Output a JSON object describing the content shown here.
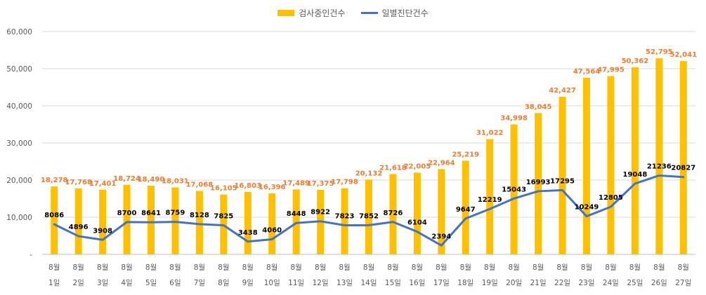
{
  "chart_data": {
    "type": "bar",
    "categories": [
      [
        "8월",
        "1일"
      ],
      [
        "8월",
        "2일"
      ],
      [
        "8월",
        "3일"
      ],
      [
        "8월",
        "4일"
      ],
      [
        "8월",
        "5일"
      ],
      [
        "8월",
        "6일"
      ],
      [
        "8월",
        "7일"
      ],
      [
        "8월",
        "8일"
      ],
      [
        "8월",
        "9일"
      ],
      [
        "8월",
        "10일"
      ],
      [
        "8월",
        "11일"
      ],
      [
        "8월",
        "12일"
      ],
      [
        "8월",
        "13일"
      ],
      [
        "8월",
        "14일"
      ],
      [
        "8월",
        "15일"
      ],
      [
        "8월",
        "16일"
      ],
      [
        "8월",
        "17일"
      ],
      [
        "8월",
        "18일"
      ],
      [
        "8월",
        "19일"
      ],
      [
        "8월",
        "20일"
      ],
      [
        "8월",
        "21일"
      ],
      [
        "8월",
        "22일"
      ],
      [
        "8월",
        "23일"
      ],
      [
        "8월",
        "24일"
      ],
      [
        "8월",
        "25일"
      ],
      [
        "8월",
        "26일"
      ],
      [
        "8월",
        "27일"
      ]
    ],
    "series": [
      {
        "name": "검사중인건수",
        "type": "bar",
        "color": "#FFC000",
        "label_color": "#ED7D31",
        "values": [
          18278,
          17768,
          17401,
          18724,
          18490,
          18031,
          17068,
          16105,
          16803,
          16396,
          17489,
          17375,
          17798,
          20132,
          21618,
          22005,
          22964,
          25219,
          31022,
          34998,
          38045,
          42427,
          47564,
          47995,
          50362,
          52795,
          52041
        ],
        "labels": [
          "18,278",
          "17,768",
          "17,401",
          "18,724",
          "18,490",
          "18,031",
          "17,068",
          "16,105",
          "16,803",
          "16,396",
          "17,489",
          "17,375",
          "17,798",
          "20,132",
          "21,618",
          "22,005",
          "22,964",
          "25,219",
          "31,022",
          "34,998",
          "38,045",
          "42,427",
          "47,564",
          "47,995",
          "50,362",
          "52,795",
          "52,041"
        ]
      },
      {
        "name": "일별진단건수",
        "type": "line",
        "color": "#4472C4",
        "label_color": "#000000",
        "values": [
          8086,
          4896,
          3908,
          8700,
          8641,
          8759,
          8128,
          7825,
          3438,
          4060,
          8448,
          8922,
          7823,
          7852,
          8726,
          6104,
          2394,
          9647,
          12219,
          15043,
          16993,
          17295,
          10249,
          12805,
          19048,
          21236,
          20827
        ],
        "labels": [
          "8086",
          "4896",
          "3908",
          "8700",
          "8641",
          "8759",
          "8128",
          "7825",
          "3438",
          "4060",
          "8448",
          "8922",
          "7823",
          "7852",
          "8726",
          "6104",
          "2394",
          "9647",
          "12219",
          "15043",
          "16993",
          "17295",
          "10249",
          "12805",
          "19048",
          "21236",
          "20827"
        ]
      }
    ],
    "ylim": [
      0,
      60000
    ],
    "yticks": [
      0,
      10000,
      20000,
      30000,
      40000,
      50000,
      60000
    ],
    "ytick_labels": [
      "-",
      "10,000",
      "20,000",
      "30,000",
      "40,000",
      "50,000",
      "60,000"
    ],
    "grid": true,
    "legend_position": "top-center",
    "title": "",
    "xlabel": "",
    "ylabel": ""
  }
}
